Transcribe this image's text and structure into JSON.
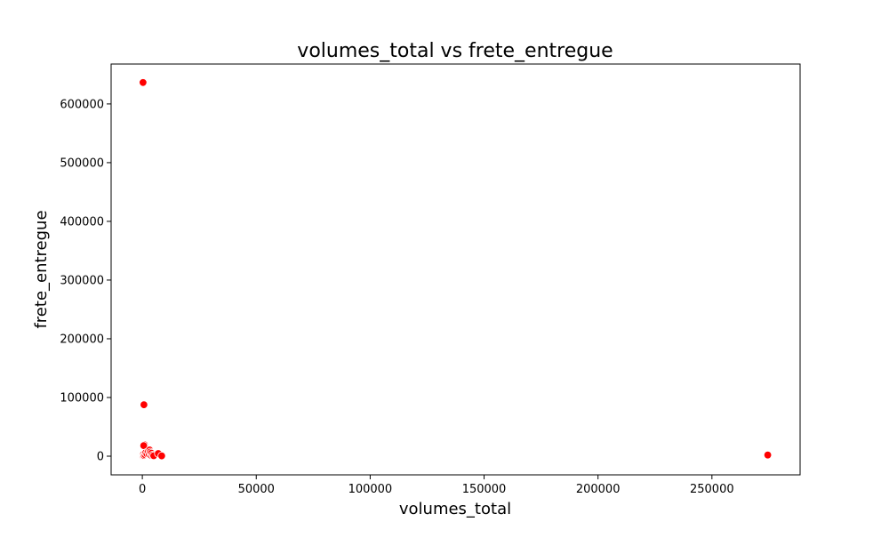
{
  "chart_data": {
    "type": "scatter",
    "title": "volumes_total vs frete_entregue",
    "xlabel": "volumes_total",
    "ylabel": "frete_entregue",
    "xlim": [
      -13700,
      288700
    ],
    "ylim": [
      -31800,
      668000
    ],
    "xticks": [
      0,
      50000,
      100000,
      150000,
      200000,
      250000
    ],
    "yticks": [
      0,
      100000,
      200000,
      300000,
      400000,
      500000,
      600000
    ],
    "xtick_labels": [
      "0",
      "50000",
      "100000",
      "150000",
      "200000",
      "250000"
    ],
    "ytick_labels": [
      "0",
      "100000",
      "200000",
      "300000",
      "400000",
      "500000",
      "600000"
    ],
    "grid": false,
    "legend": "none",
    "marker_color": "#ff0000",
    "marker_edge_color": "#ffffff",
    "series": [
      {
        "points": [
          {
            "x": 300,
            "y": 636500
          },
          {
            "x": 700,
            "y": 87600
          },
          {
            "x": 900,
            "y": 19500
          },
          {
            "x": 600,
            "y": 18000
          },
          {
            "x": 0,
            "y": 0
          },
          {
            "x": 100,
            "y": 500
          },
          {
            "x": 300,
            "y": 1500
          },
          {
            "x": 500,
            "y": 3000
          },
          {
            "x": 800,
            "y": 1200
          },
          {
            "x": 1200,
            "y": 2500
          },
          {
            "x": 1500,
            "y": 6000
          },
          {
            "x": 2000,
            "y": 4000
          },
          {
            "x": 2500,
            "y": 8000
          },
          {
            "x": 3000,
            "y": 3000
          },
          {
            "x": 3200,
            "y": 10500
          },
          {
            "x": 3500,
            "y": 7000
          },
          {
            "x": 3800,
            "y": 1500
          },
          {
            "x": 4000,
            "y": 5000
          },
          {
            "x": 4500,
            "y": 2000
          },
          {
            "x": 5000,
            "y": 800
          },
          {
            "x": 7000,
            "y": 4500
          },
          {
            "x": 8500,
            "y": 500
          },
          {
            "x": 274500,
            "y": 2000
          }
        ]
      }
    ]
  }
}
